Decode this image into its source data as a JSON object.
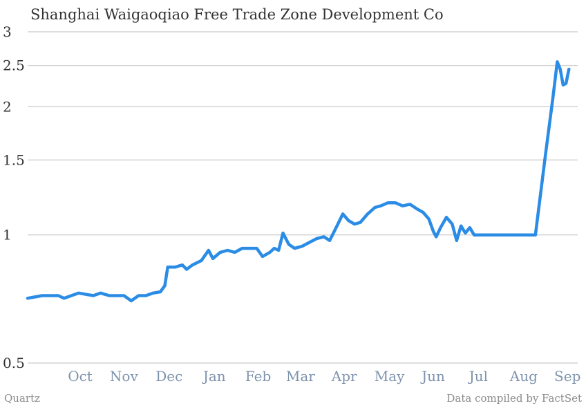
{
  "chart_data": {
    "type": "line",
    "title": "Shanghai Waigaoqiao Free Trade Zone Development Co",
    "xlabel": "",
    "ylabel": "",
    "y_scale": "log",
    "ylim": [
      0.5,
      3
    ],
    "y_ticks": [
      "3",
      "2.5",
      "2",
      "1.5",
      "1",
      "0.5"
    ],
    "x_ticks": [
      "Oct",
      "Nov",
      "Dec",
      "Jan",
      "Feb",
      "Mar",
      "Apr",
      "May",
      "Jun",
      "Jul",
      "Aug",
      "Sep"
    ],
    "xlim": [
      "2013-09-10",
      "2014-09-22"
    ],
    "grid": true,
    "series": [
      {
        "color": "#2b8ce6",
        "points": [
          [
            "2013-09-10",
            0.71
          ],
          [
            "2013-09-15",
            0.715
          ],
          [
            "2013-09-20",
            0.72
          ],
          [
            "2013-09-25",
            0.72
          ],
          [
            "2013-10-01",
            0.72
          ],
          [
            "2013-10-05",
            0.71
          ],
          [
            "2013-10-10",
            0.72
          ],
          [
            "2013-10-15",
            0.73
          ],
          [
            "2013-10-20",
            0.725
          ],
          [
            "2013-10-25",
            0.72
          ],
          [
            "2013-10-30",
            0.73
          ],
          [
            "2013-11-05",
            0.72
          ],
          [
            "2013-11-10",
            0.72
          ],
          [
            "2013-11-15",
            0.72
          ],
          [
            "2013-11-20",
            0.7
          ],
          [
            "2013-11-25",
            0.72
          ],
          [
            "2013-11-30",
            0.72
          ],
          [
            "2013-12-05",
            0.73
          ],
          [
            "2013-12-10",
            0.735
          ],
          [
            "2013-12-13",
            0.76
          ],
          [
            "2013-12-15",
            0.84
          ],
          [
            "2013-12-20",
            0.84
          ],
          [
            "2013-12-25",
            0.85
          ],
          [
            "2013-12-28",
            0.83
          ],
          [
            "2014-01-01",
            0.85
          ],
          [
            "2014-01-07",
            0.87
          ],
          [
            "2014-01-12",
            0.92
          ],
          [
            "2014-01-15",
            0.88
          ],
          [
            "2014-01-20",
            0.91
          ],
          [
            "2014-01-25",
            0.92
          ],
          [
            "2014-01-30",
            0.91
          ],
          [
            "2014-02-04",
            0.93
          ],
          [
            "2014-02-10",
            0.93
          ],
          [
            "2014-02-14",
            0.93
          ],
          [
            "2014-02-18",
            0.89
          ],
          [
            "2014-02-23",
            0.91
          ],
          [
            "2014-02-26",
            0.93
          ],
          [
            "2014-03-01",
            0.92
          ],
          [
            "2014-03-04",
            1.01
          ],
          [
            "2014-03-08",
            0.95
          ],
          [
            "2014-03-12",
            0.93
          ],
          [
            "2014-03-17",
            0.94
          ],
          [
            "2014-03-22",
            0.96
          ],
          [
            "2014-03-27",
            0.98
          ],
          [
            "2014-04-01",
            0.99
          ],
          [
            "2014-04-05",
            0.97
          ],
          [
            "2014-04-10",
            1.05
          ],
          [
            "2014-04-14",
            1.12
          ],
          [
            "2014-04-18",
            1.08
          ],
          [
            "2014-04-22",
            1.06
          ],
          [
            "2014-04-26",
            1.07
          ],
          [
            "2014-05-01",
            1.12
          ],
          [
            "2014-05-06",
            1.16
          ],
          [
            "2014-05-10",
            1.17
          ],
          [
            "2014-05-15",
            1.19
          ],
          [
            "2014-05-20",
            1.19
          ],
          [
            "2014-05-25",
            1.17
          ],
          [
            "2014-05-30",
            1.18
          ],
          [
            "2014-06-04",
            1.15
          ],
          [
            "2014-06-08",
            1.13
          ],
          [
            "2014-06-12",
            1.09
          ],
          [
            "2014-06-15",
            1.02
          ],
          [
            "2014-06-17",
            0.99
          ],
          [
            "2014-06-20",
            1.04
          ],
          [
            "2014-06-24",
            1.1
          ],
          [
            "2014-06-28",
            1.06
          ],
          [
            "2014-07-01",
            0.97
          ],
          [
            "2014-07-04",
            1.05
          ],
          [
            "2014-07-07",
            1.01
          ],
          [
            "2014-07-10",
            1.04
          ],
          [
            "2014-07-13",
            1.0
          ],
          [
            "2014-07-20",
            1.0
          ],
          [
            "2014-07-31",
            1.0
          ],
          [
            "2014-08-10",
            1.0
          ],
          [
            "2014-08-20",
            1.0
          ],
          [
            "2014-08-24",
            1.0
          ],
          [
            "2014-08-31",
            1.55
          ],
          [
            "2014-09-05",
            2.1
          ],
          [
            "2014-09-08",
            2.55
          ],
          [
            "2014-09-10",
            2.45
          ],
          [
            "2014-09-12",
            2.25
          ],
          [
            "2014-09-14",
            2.27
          ],
          [
            "2014-09-16",
            2.45
          ]
        ]
      }
    ]
  },
  "footer": {
    "source_left": "Quartz",
    "source_right": "Data compiled by FactSet"
  }
}
